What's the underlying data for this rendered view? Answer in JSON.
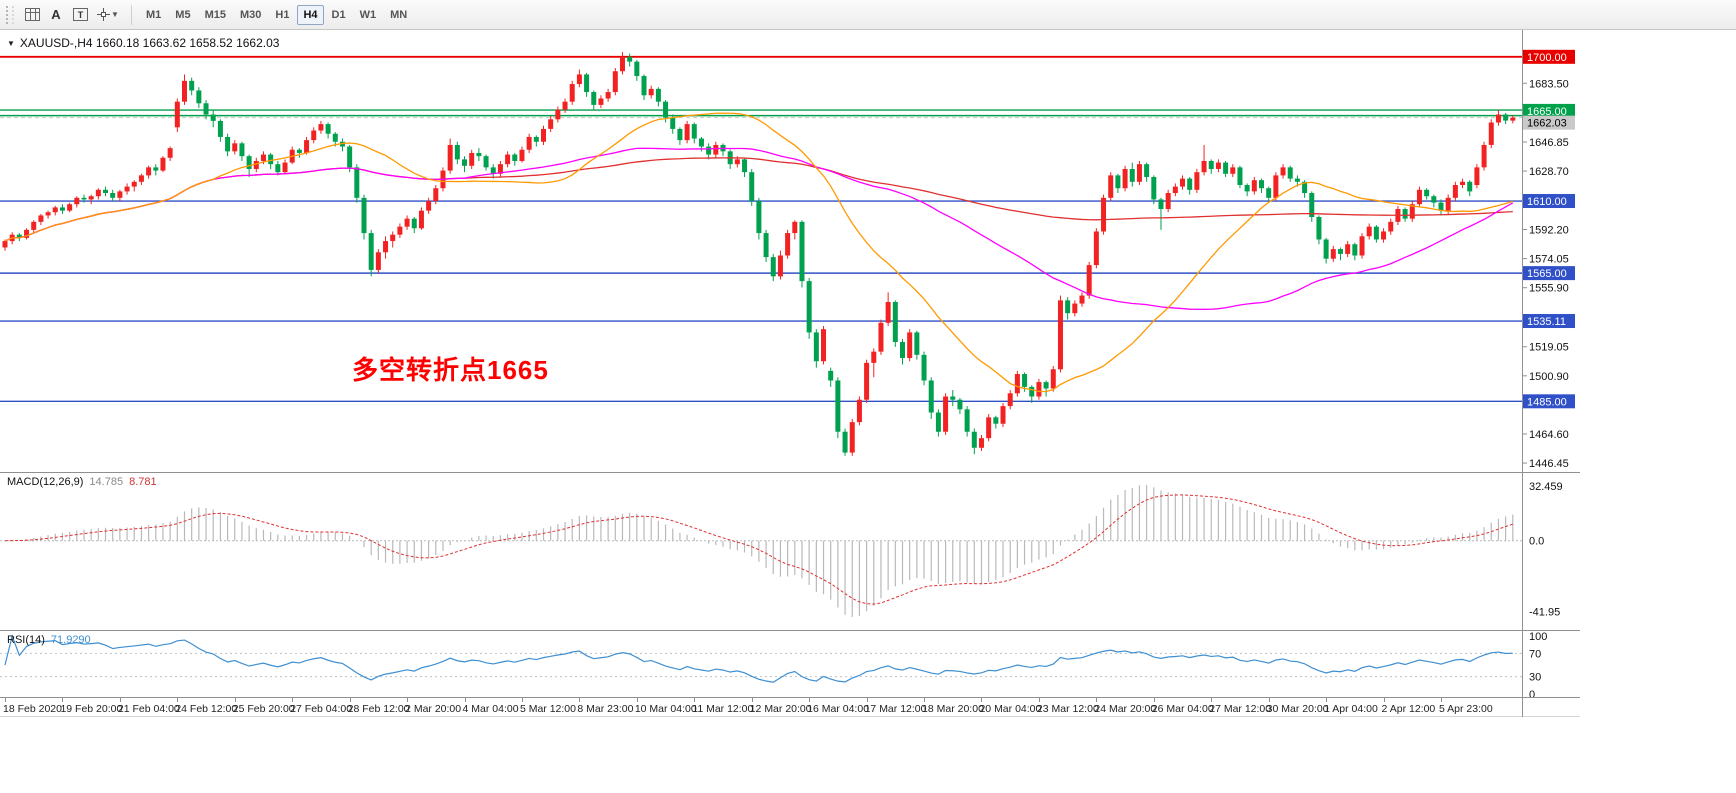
{
  "toolbar": {
    "timeframes": [
      "M1",
      "M5",
      "M15",
      "M30",
      "H1",
      "H4",
      "D1",
      "W1",
      "MN"
    ],
    "active": "H4"
  },
  "chart_data": {
    "type": "candlestick",
    "symbol_title": "XAUUSD-,H4 1660.18 1663.62 1658.52 1662.03",
    "annotation": {
      "text": "多空转折点1665",
      "color": "#ff0000"
    },
    "price_range": {
      "min": 1444,
      "max": 1708
    },
    "colors": {
      "bull": "#f22222",
      "bear": "#00a14e",
      "macd_hist": "#b9b9b9",
      "macd_signal": "#e03030",
      "rsi": "#3d8fd2"
    },
    "y_ticks": [
      {
        "label": "1683.50",
        "price": 1683.5
      },
      {
        "label": "1646.85",
        "price": 1646.85
      },
      {
        "label": "1628.70",
        "price": 1628.7
      },
      {
        "label": "1592.20",
        "price": 1592.2
      },
      {
        "label": "1574.05",
        "price": 1574.05
      },
      {
        "label": "1555.90",
        "price": 1555.9
      },
      {
        "label": "1519.05",
        "price": 1519.05
      },
      {
        "label": "1500.90",
        "price": 1500.9
      },
      {
        "label": "1464.60",
        "price": 1464.6
      },
      {
        "label": "1446.45",
        "price": 1446.45
      }
    ],
    "lines": [
      {
        "price": 1700.0,
        "color": "#e80000",
        "width": 1.8
      },
      {
        "price": 1666.8,
        "color": "#00a14b",
        "width": 1.4
      },
      {
        "price": 1663.3,
        "color": "#00a14b",
        "width": 1.4
      },
      {
        "price": 1610.0,
        "color": "#3050c8",
        "width": 1.4
      },
      {
        "price": 1565.0,
        "color": "#3050c8",
        "width": 1.4
      },
      {
        "price": 1535.11,
        "color": "#3050c8",
        "width": 1.4
      },
      {
        "price": 1485.0,
        "color": "#3050c8",
        "width": 1.4
      },
      {
        "price": 1662.03,
        "color": "#c9c9c9",
        "width": 1,
        "dash": "4,3"
      }
    ],
    "badges": [
      {
        "label": "1700.00",
        "price": 1700.0,
        "color": "#e80000"
      },
      {
        "label": "1665.00",
        "price": 1665.0,
        "color": "#00a14b",
        "dy": -2
      },
      {
        "label": "1662.03",
        "price": 1662.03,
        "color": "#c9c9c9",
        "text": "#000000",
        "dy": 5
      },
      {
        "label": "1610.00",
        "price": 1610.0,
        "color": "#3050c8"
      },
      {
        "label": "1565.00",
        "price": 1565.0,
        "color": "#3050c8"
      },
      {
        "label": "1535.11",
        "price": 1535.11,
        "color": "#3050c8"
      },
      {
        "label": "1485.00",
        "price": 1485.0,
        "color": "#3050c8"
      }
    ],
    "moving_averages": [
      {
        "period": 200,
        "color": "#e03030"
      },
      {
        "period": 65,
        "color": "#ff00ff"
      },
      {
        "period": 30,
        "color": "#ff9900"
      }
    ],
    "x_label_step": 8,
    "x_labels": [
      "18 Feb 2020",
      "19 Feb 20:00",
      "21 Feb 04:00",
      "24 Feb 12:00",
      "25 Feb 20:00",
      "27 Feb 04:00",
      "28 Feb 12:00",
      "2 Mar 20:00",
      "4 Mar 04:00",
      "5 Mar 12:00",
      "8 Mar 23:00",
      "10 Mar 04:00",
      "11 Mar 12:00",
      "12 Mar 20:00",
      "16 Mar 04:00",
      "17 Mar 12:00",
      "18 Mar 20:00",
      "20 Mar 04:00",
      "23 Mar 12:00",
      "24 Mar 20:00",
      "26 Mar 04:00",
      "27 Mar 12:00",
      "30 Mar 20:00",
      "1 Apr 04:00",
      "2 Apr 12:00",
      "5 Apr 23:00"
    ],
    "indicators": {
      "macd": {
        "name": "MACD(12,26,9)",
        "value_main": "14.785",
        "value_signal": "8.781",
        "fast": 12,
        "slow": 26,
        "signal_period": 9,
        "axis_labels": [
          {
            "label": "32.459",
            "value": 32.459
          },
          {
            "label": "0.0",
            "value": 0
          },
          {
            "label": "-41.95",
            "value": -41.95
          }
        ]
      },
      "rsi": {
        "name": "RSI(14)",
        "value": "71.9290",
        "period": 14,
        "axis_labels": [
          {
            "label": "100",
            "value": 100
          },
          {
            "label": "70",
            "value": 70
          },
          {
            "label": "30",
            "value": 30
          },
          {
            "label": "0",
            "value": 0
          }
        ],
        "dotted_levels": [
          70,
          30
        ]
      }
    },
    "candles": [
      [
        1581,
        1586,
        1579,
        1585
      ],
      [
        1585,
        1590.5,
        1583,
        1589
      ],
      [
        1589,
        1590,
        1585,
        1587
      ],
      [
        1587,
        1593,
        1586,
        1592
      ],
      [
        1592,
        1598,
        1590,
        1597
      ],
      [
        1597,
        1602,
        1595,
        1601
      ],
      [
        1601,
        1604,
        1599,
        1603
      ],
      [
        1603,
        1607,
        1601,
        1606
      ],
      [
        1606,
        1608,
        1602,
        1604
      ],
      [
        1604,
        1609,
        1603,
        1608
      ],
      [
        1608,
        1613,
        1606,
        1612
      ],
      [
        1612,
        1614,
        1609,
        1611
      ],
      [
        1611,
        1614,
        1608,
        1613
      ],
      [
        1613,
        1618,
        1611,
        1617
      ],
      [
        1617,
        1619,
        1613,
        1615
      ],
      [
        1615,
        1617,
        1610,
        1612
      ],
      [
        1612,
        1617,
        1610,
        1616
      ],
      [
        1616,
        1621,
        1614,
        1619
      ],
      [
        1619,
        1623,
        1616,
        1622
      ],
      [
        1622,
        1627,
        1620,
        1626
      ],
      [
        1626,
        1632,
        1624,
        1631
      ],
      [
        1631,
        1633,
        1626,
        1629
      ],
      [
        1629,
        1638,
        1628,
        1637
      ],
      [
        1637,
        1644,
        1635,
        1643
      ],
      [
        1656,
        1674,
        1653,
        1672
      ],
      [
        1672,
        1689,
        1670,
        1685
      ],
      [
        1685,
        1687,
        1676,
        1679
      ],
      [
        1679,
        1681,
        1668,
        1671
      ],
      [
        1671,
        1673,
        1661,
        1664
      ],
      [
        1664,
        1667,
        1656,
        1660
      ],
      [
        1660,
        1661,
        1647,
        1650
      ],
      [
        1650,
        1652,
        1638,
        1641
      ],
      [
        1641,
        1648,
        1639,
        1646
      ],
      [
        1646,
        1647,
        1635,
        1638
      ],
      [
        1638,
        1639,
        1625,
        1630
      ],
      [
        1630,
        1637,
        1628,
        1635
      ],
      [
        1635,
        1641,
        1633,
        1639
      ],
      [
        1639,
        1640,
        1630,
        1633
      ],
      [
        1633,
        1635,
        1626,
        1628
      ],
      [
        1628,
        1636,
        1627,
        1634
      ],
      [
        1634,
        1644,
        1633,
        1642
      ],
      [
        1642,
        1643,
        1637,
        1640
      ],
      [
        1640,
        1650,
        1639,
        1648
      ],
      [
        1648,
        1656,
        1646,
        1654
      ],
      [
        1654,
        1660,
        1652,
        1658
      ],
      [
        1658,
        1659,
        1649,
        1652
      ],
      [
        1652,
        1653,
        1644,
        1647
      ],
      [
        1647,
        1649,
        1641,
        1644
      ],
      [
        1644,
        1645,
        1628,
        1631
      ],
      [
        1631,
        1633,
        1609,
        1612
      ],
      [
        1612,
        1614,
        1586,
        1590
      ],
      [
        1590,
        1592,
        1563,
        1567
      ],
      [
        1567,
        1580,
        1565,
        1578
      ],
      [
        1578,
        1588,
        1574,
        1585
      ],
      [
        1585,
        1591,
        1581,
        1589
      ],
      [
        1589,
        1596,
        1587,
        1594
      ],
      [
        1594,
        1601,
        1592,
        1599
      ],
      [
        1599,
        1600,
        1590,
        1593
      ],
      [
        1593,
        1606,
        1592,
        1604
      ],
      [
        1604,
        1612,
        1602,
        1610
      ],
      [
        1610,
        1620,
        1608,
        1618
      ],
      [
        1618,
        1631,
        1616,
        1629
      ],
      [
        1629,
        1649,
        1627,
        1645
      ],
      [
        1645,
        1647,
        1633,
        1636
      ],
      [
        1636,
        1638,
        1628,
        1632
      ],
      [
        1632,
        1642,
        1630,
        1640
      ],
      [
        1640,
        1643,
        1635,
        1638
      ],
      [
        1638,
        1639,
        1629,
        1631
      ],
      [
        1631,
        1633,
        1624,
        1627
      ],
      [
        1627,
        1635,
        1625,
        1633
      ],
      [
        1633,
        1641,
        1631,
        1639
      ],
      [
        1639,
        1640,
        1632,
        1635
      ],
      [
        1635,
        1644,
        1634,
        1642
      ],
      [
        1642,
        1652,
        1640,
        1650
      ],
      [
        1650,
        1651,
        1644,
        1647
      ],
      [
        1647,
        1657,
        1645,
        1655
      ],
      [
        1655,
        1663,
        1653,
        1661
      ],
      [
        1661,
        1669,
        1659,
        1667
      ],
      [
        1667,
        1674,
        1665,
        1672
      ],
      [
        1672,
        1685,
        1670,
        1683
      ],
      [
        1683,
        1692,
        1681,
        1689
      ],
      [
        1689,
        1690,
        1675,
        1678
      ],
      [
        1678,
        1679,
        1667,
        1670
      ],
      [
        1670,
        1676,
        1668,
        1674
      ],
      [
        1674,
        1680,
        1672,
        1678
      ],
      [
        1678,
        1693,
        1676,
        1691
      ],
      [
        1691,
        1703,
        1689,
        1700
      ],
      [
        1700,
        1702,
        1694,
        1697
      ],
      [
        1697,
        1698,
        1685,
        1688
      ],
      [
        1688,
        1689,
        1673,
        1676
      ],
      [
        1676,
        1682,
        1674,
        1680
      ],
      [
        1680,
        1681,
        1669,
        1672
      ],
      [
        1672,
        1673,
        1659,
        1662
      ],
      [
        1662,
        1664,
        1652,
        1655
      ],
      [
        1655,
        1656,
        1645,
        1648
      ],
      [
        1648,
        1660,
        1646,
        1658
      ],
      [
        1658,
        1659,
        1646,
        1649
      ],
      [
        1649,
        1650,
        1641,
        1644
      ],
      [
        1644,
        1646,
        1636,
        1639
      ],
      [
        1639,
        1647,
        1637,
        1645
      ],
      [
        1645,
        1646,
        1638,
        1641
      ],
      [
        1641,
        1642,
        1630,
        1633
      ],
      [
        1633,
        1638,
        1631,
        1636
      ],
      [
        1636,
        1637,
        1625,
        1628
      ],
      [
        1628,
        1630,
        1607,
        1610
      ],
      [
        1610,
        1612,
        1586,
        1590
      ],
      [
        1590,
        1592,
        1572,
        1575
      ],
      [
        1575,
        1577,
        1560,
        1563
      ],
      [
        1563,
        1579,
        1561,
        1576
      ],
      [
        1576,
        1592,
        1574,
        1590
      ],
      [
        1590,
        1598,
        1586,
        1597
      ],
      [
        1597,
        1598,
        1556,
        1560
      ],
      [
        1560,
        1562,
        1524,
        1528
      ],
      [
        1528,
        1530,
        1506,
        1510
      ],
      [
        1510,
        1532,
        1508,
        1530
      ],
      [
        1504,
        1506,
        1494,
        1498
      ],
      [
        1498,
        1500,
        1462,
        1466
      ],
      [
        1466,
        1468,
        1451,
        1453
      ],
      [
        1453,
        1474,
        1451,
        1472
      ],
      [
        1472,
        1488,
        1470,
        1486
      ],
      [
        1486,
        1511,
        1484,
        1509
      ],
      [
        1509,
        1518,
        1500,
        1516
      ],
      [
        1516,
        1536,
        1514,
        1534
      ],
      [
        1534,
        1553,
        1532,
        1547
      ],
      [
        1547,
        1548,
        1519,
        1522
      ],
      [
        1522,
        1524,
        1508,
        1512
      ],
      [
        1512,
        1530,
        1510,
        1528
      ],
      [
        1528,
        1529,
        1511,
        1514
      ],
      [
        1514,
        1516,
        1495,
        1498
      ],
      [
        1498,
        1500,
        1474,
        1478
      ],
      [
        1478,
        1480,
        1463,
        1466
      ],
      [
        1466,
        1490,
        1464,
        1488
      ],
      [
        1488,
        1492,
        1482,
        1486
      ],
      [
        1486,
        1487,
        1477,
        1480
      ],
      [
        1480,
        1482,
        1463,
        1466
      ],
      [
        1466,
        1468,
        1452,
        1456
      ],
      [
        1456,
        1464,
        1454,
        1462
      ],
      [
        1462,
        1477,
        1460,
        1475
      ],
      [
        1475,
        1476,
        1468,
        1471
      ],
      [
        1471,
        1484,
        1469,
        1482
      ],
      [
        1482,
        1492,
        1480,
        1490
      ],
      [
        1490,
        1504,
        1488,
        1502
      ],
      [
        1502,
        1503,
        1491,
        1494
      ],
      [
        1494,
        1495,
        1484,
        1488
      ],
      [
        1488,
        1499,
        1486,
        1497
      ],
      [
        1497,
        1498,
        1488,
        1493
      ],
      [
        1493,
        1507,
        1491,
        1505
      ],
      [
        1505,
        1551,
        1503,
        1548
      ],
      [
        1548,
        1550,
        1536,
        1540
      ],
      [
        1540,
        1548,
        1538,
        1546
      ],
      [
        1546,
        1553,
        1544,
        1551
      ],
      [
        1551,
        1572,
        1549,
        1570
      ],
      [
        1570,
        1593,
        1568,
        1591
      ],
      [
        1591,
        1614,
        1589,
        1612
      ],
      [
        1612,
        1628,
        1610,
        1626
      ],
      [
        1626,
        1627,
        1615,
        1618
      ],
      [
        1618,
        1632,
        1616,
        1630
      ],
      [
        1630,
        1634,
        1619,
        1622
      ],
      [
        1622,
        1635,
        1620,
        1633
      ],
      [
        1633,
        1634,
        1622,
        1625
      ],
      [
        1625,
        1626,
        1608,
        1611
      ],
      [
        1611,
        1612,
        1592,
        1605
      ],
      [
        1605,
        1617,
        1603,
        1615
      ],
      [
        1615,
        1621,
        1613,
        1619
      ],
      [
        1619,
        1626,
        1617,
        1624
      ],
      [
        1624,
        1625,
        1614,
        1617
      ],
      [
        1617,
        1630,
        1615,
        1628
      ],
      [
        1628,
        1645,
        1626,
        1635
      ],
      [
        1635,
        1636,
        1627,
        1630
      ],
      [
        1630,
        1636,
        1628,
        1634
      ],
      [
        1634,
        1635,
        1625,
        1627
      ],
      [
        1627,
        1633,
        1625,
        1631
      ],
      [
        1631,
        1632,
        1618,
        1620
      ],
      [
        1620,
        1621,
        1613,
        1616
      ],
      [
        1616,
        1625,
        1614,
        1623
      ],
      [
        1623,
        1624,
        1615,
        1618
      ],
      [
        1618,
        1619,
        1609,
        1612
      ],
      [
        1612,
        1628,
        1610,
        1626
      ],
      [
        1626,
        1633,
        1624,
        1631
      ],
      [
        1631,
        1632,
        1622,
        1624
      ],
      [
        1624,
        1626,
        1619,
        1622
      ],
      [
        1622,
        1623,
        1612,
        1615
      ],
      [
        1615,
        1616,
        1597,
        1600
      ],
      [
        1600,
        1601,
        1583,
        1586
      ],
      [
        1586,
        1587,
        1571,
        1574
      ],
      [
        1574,
        1582,
        1572,
        1580
      ],
      [
        1580,
        1581,
        1573,
        1577
      ],
      [
        1577,
        1585,
        1575,
        1583
      ],
      [
        1583,
        1584,
        1573,
        1576
      ],
      [
        1576,
        1590,
        1574,
        1588
      ],
      [
        1588,
        1596,
        1586,
        1594
      ],
      [
        1594,
        1595,
        1584,
        1586
      ],
      [
        1586,
        1593,
        1584,
        1591
      ],
      [
        1591,
        1599,
        1589,
        1597
      ],
      [
        1597,
        1607,
        1595,
        1605
      ],
      [
        1605,
        1606,
        1597,
        1599
      ],
      [
        1599,
        1610,
        1597,
        1608
      ],
      [
        1608,
        1619,
        1606,
        1617
      ],
      [
        1617,
        1618,
        1611,
        1613
      ],
      [
        1613,
        1614,
        1606,
        1609
      ],
      [
        1609,
        1611,
        1601,
        1604
      ],
      [
        1604,
        1614,
        1602,
        1612
      ],
      [
        1612,
        1622,
        1610,
        1620
      ],
      [
        1620,
        1624,
        1618,
        1622
      ],
      [
        1622,
        1623,
        1613,
        1616
      ],
      [
        1620,
        1633,
        1618,
        1631
      ],
      [
        1631,
        1647,
        1629,
        1645
      ],
      [
        1645,
        1661,
        1643,
        1659
      ],
      [
        1659,
        1666.9,
        1657,
        1664
      ],
      [
        1664,
        1665,
        1658,
        1660.2
      ],
      [
        1660.18,
        1663.62,
        1658.52,
        1662.03
      ]
    ]
  }
}
